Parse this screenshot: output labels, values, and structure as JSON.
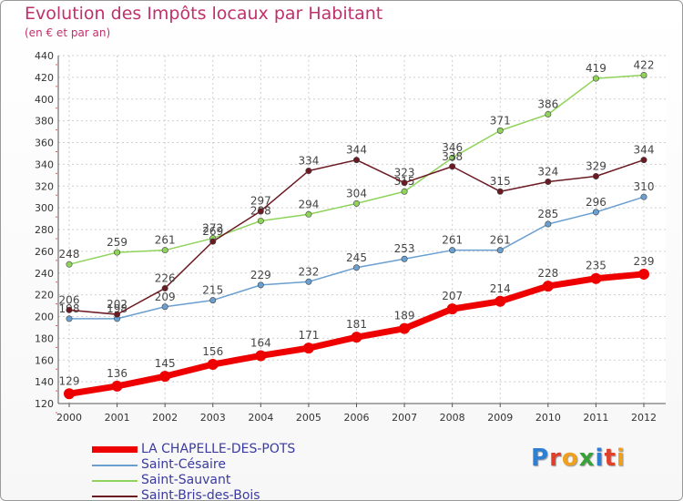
{
  "header": {
    "title": "Evolution des Impôts locaux par Habitant",
    "subtitle": "(en € et par an)"
  },
  "brand": {
    "letters": [
      "P",
      "r",
      "o",
      "x",
      "i",
      "t",
      "i"
    ],
    "colors": [
      "#2d7fd6",
      "#e0402a",
      "#f0a020",
      "#3aa03a",
      "#2d7fd6",
      "#e0402a",
      "#f0a020"
    ]
  },
  "chart_data": {
    "type": "line",
    "title": "Evolution des Impôts locaux par Habitant",
    "subtitle": "(en € et par an)",
    "xlabel": "",
    "ylabel": "",
    "ylim": [
      120,
      440
    ],
    "yticks": [
      120,
      140,
      160,
      180,
      200,
      220,
      240,
      260,
      280,
      300,
      320,
      340,
      360,
      380,
      400,
      420,
      440
    ],
    "categories": [
      "2000",
      "2001",
      "2002",
      "2003",
      "2004",
      "2005",
      "2006",
      "2007",
      "2008",
      "2009",
      "2010",
      "2011",
      "2012"
    ],
    "grid": true,
    "legend_position": "bottom-left",
    "series": [
      {
        "name": "LA CHAPELLE-DES-POTS",
        "color": "#ee0000",
        "values": [
          129,
          136,
          145,
          156,
          164,
          171,
          181,
          189,
          207,
          214,
          228,
          235,
          239
        ]
      },
      {
        "name": "Saint-Césaire",
        "color": "#6a9fd0",
        "values": [
          198,
          198,
          209,
          215,
          229,
          232,
          245,
          253,
          261,
          261,
          285,
          296,
          310
        ]
      },
      {
        "name": "Saint-Sauvant",
        "color": "#8fd35a",
        "values": [
          248,
          259,
          261,
          272,
          288,
          294,
          304,
          315,
          346,
          371,
          386,
          419,
          422
        ]
      },
      {
        "name": "Saint-Bris-des-Bois",
        "color": "#6b1a22",
        "values": [
          206,
          202,
          226,
          269,
          297,
          334,
          344,
          323,
          338,
          315,
          324,
          329,
          344
        ]
      }
    ]
  }
}
